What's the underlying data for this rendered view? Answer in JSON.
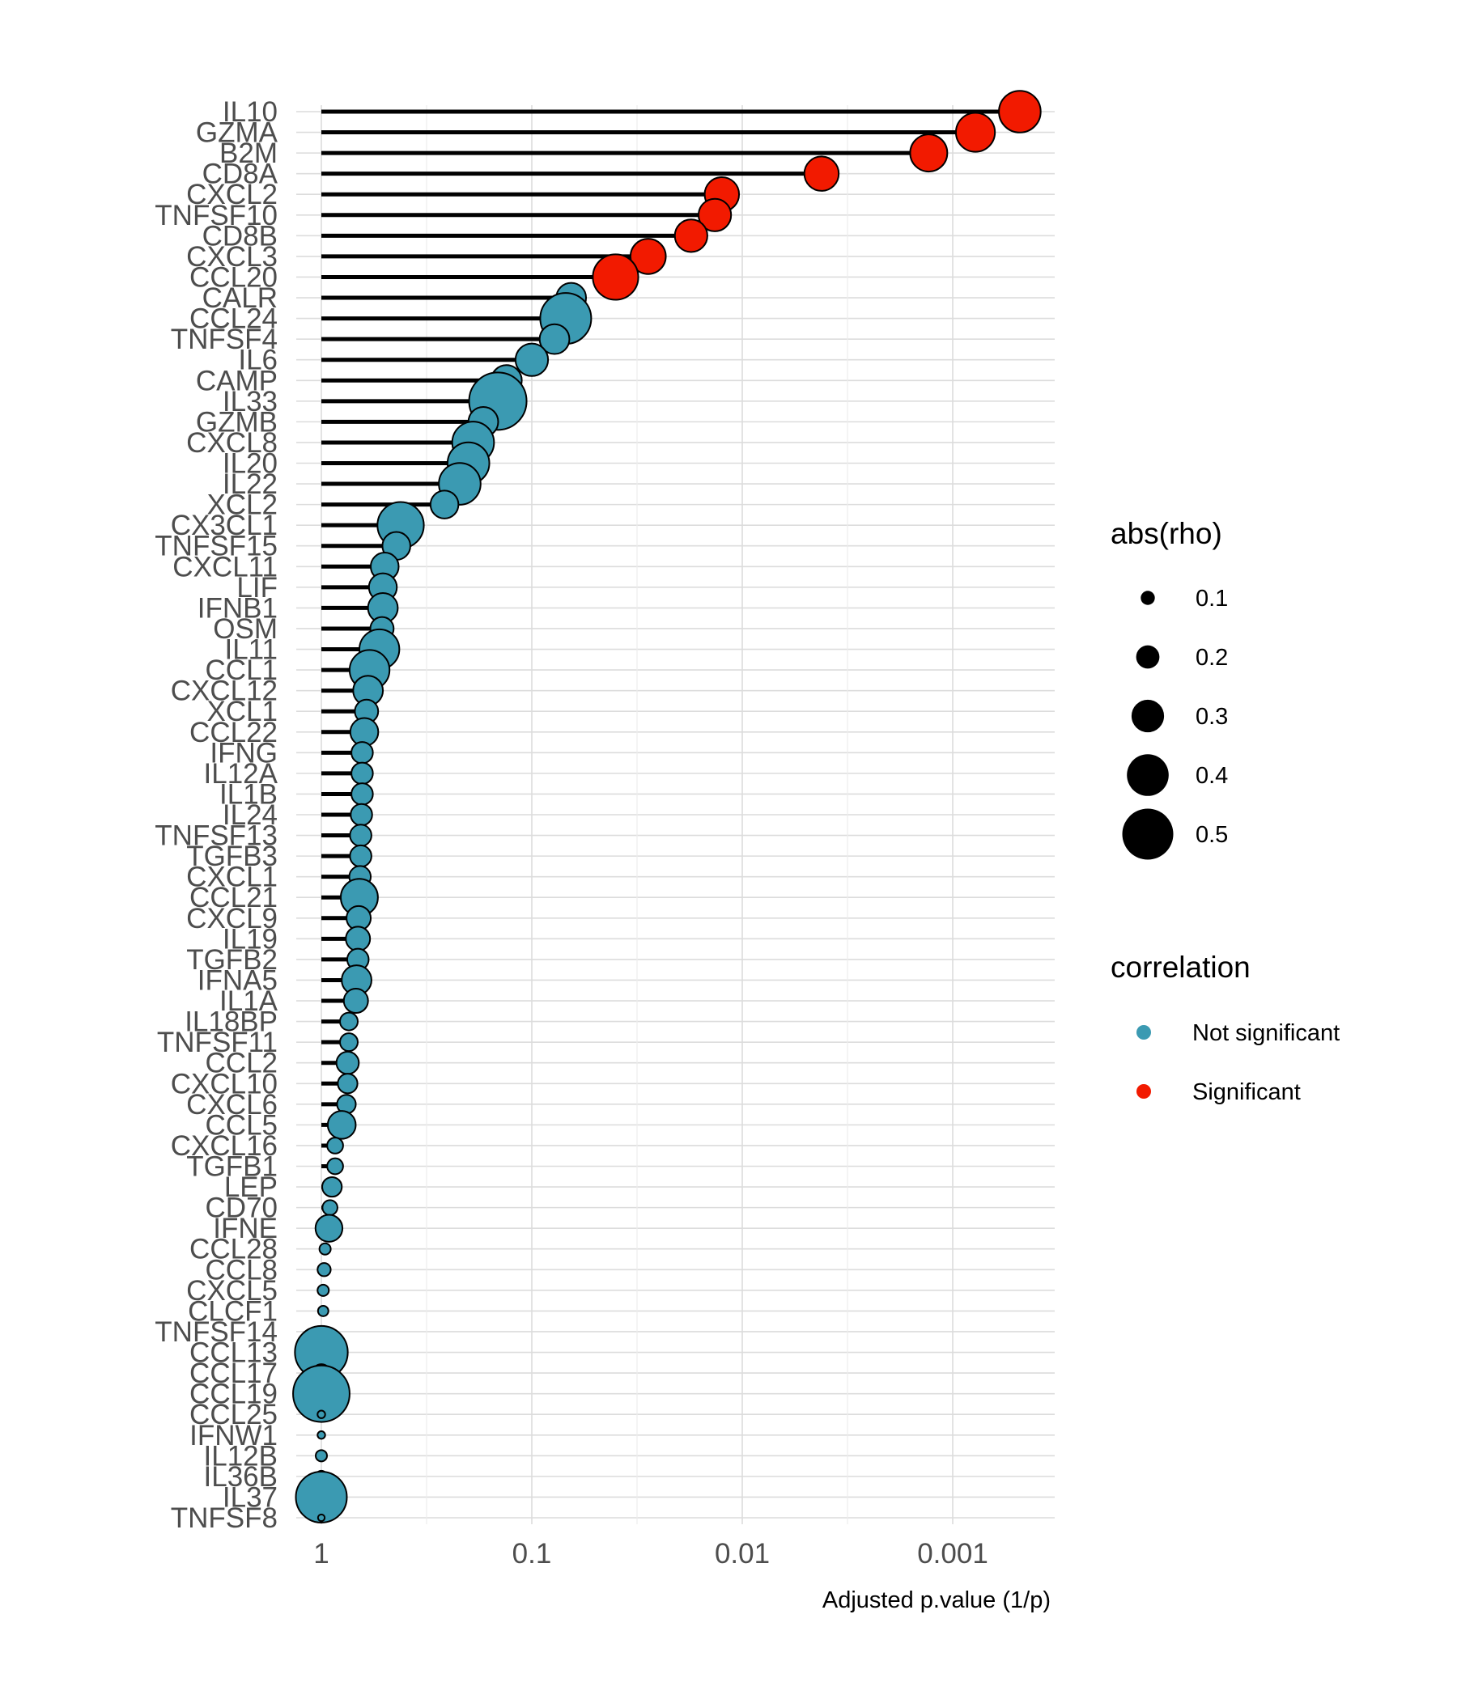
{
  "chart_data": {
    "type": "lollipop",
    "xlabel": "Adjusted p.value (1/p)",
    "x_scale": "log-reversed",
    "x_ticks": [
      "1",
      "0.1",
      "0.01",
      "0.001"
    ],
    "x_tick_values": [
      1,
      0.1,
      0.01,
      0.001
    ],
    "xlim": [
      1.15,
      0.00035
    ],
    "grid": true,
    "legend_position": "right",
    "size_legend": {
      "title": "abs(rho)",
      "items": [
        {
          "label": "0.1",
          "value": 0.1
        },
        {
          "label": "0.2",
          "value": 0.2
        },
        {
          "label": "0.3",
          "value": 0.3
        },
        {
          "label": "0.4",
          "value": 0.4
        },
        {
          "label": "0.5",
          "value": 0.5
        }
      ]
    },
    "color_legend": {
      "title": "correlation",
      "items": [
        {
          "label": "Not significant",
          "color": "#3B9AB2"
        },
        {
          "label": "Significant",
          "color": "#F21A00"
        }
      ]
    },
    "colors": {
      "Not significant": "#3B9AB2",
      "Significant": "#F21A00"
    },
    "points": [
      {
        "gene": "IL10",
        "p": 0.00048,
        "rho": 0.4,
        "group": "Significant"
      },
      {
        "gene": "GZMA",
        "p": 0.00078,
        "rho": 0.37,
        "group": "Significant"
      },
      {
        "gene": "B2M",
        "p": 0.0013,
        "rho": 0.35,
        "group": "Significant"
      },
      {
        "gene": "CD8A",
        "p": 0.0042,
        "rho": 0.32,
        "group": "Significant"
      },
      {
        "gene": "CXCL2",
        "p": 0.0125,
        "rho": 0.32,
        "group": "Significant"
      },
      {
        "gene": "TNFSF10",
        "p": 0.0135,
        "rho": 0.3,
        "group": "Significant"
      },
      {
        "gene": "CD8B",
        "p": 0.0175,
        "rho": 0.3,
        "group": "Significant"
      },
      {
        "gene": "CXCL3",
        "p": 0.028,
        "rho": 0.33,
        "group": "Significant"
      },
      {
        "gene": "CCL20",
        "p": 0.04,
        "rho": 0.44,
        "group": "Significant"
      },
      {
        "gene": "CALR",
        "p": 0.065,
        "rho": 0.27,
        "group": "Not significant"
      },
      {
        "gene": "CCL24",
        "p": 0.069,
        "rho": 0.5,
        "group": "Not significant"
      },
      {
        "gene": "TNFSF4",
        "p": 0.078,
        "rho": 0.27,
        "group": "Not significant"
      },
      {
        "gene": "IL6",
        "p": 0.1,
        "rho": 0.3,
        "group": "Not significant"
      },
      {
        "gene": "CAMP",
        "p": 0.132,
        "rho": 0.28,
        "group": "Not significant"
      },
      {
        "gene": "IL33",
        "p": 0.145,
        "rho": 0.57,
        "group": "Not significant"
      },
      {
        "gene": "GZMB",
        "p": 0.17,
        "rho": 0.27,
        "group": "Not significant"
      },
      {
        "gene": "CXCL8",
        "p": 0.19,
        "rho": 0.4,
        "group": "Not significant"
      },
      {
        "gene": "IL20",
        "p": 0.2,
        "rho": 0.4,
        "group": "Not significant"
      },
      {
        "gene": "IL22",
        "p": 0.22,
        "rho": 0.4,
        "group": "Not significant"
      },
      {
        "gene": "XCL2",
        "p": 0.26,
        "rho": 0.25,
        "group": "Not significant"
      },
      {
        "gene": "CX3CL1",
        "p": 0.42,
        "rho": 0.45,
        "group": "Not significant"
      },
      {
        "gene": "TNFSF15",
        "p": 0.44,
        "rho": 0.25,
        "group": "Not significant"
      },
      {
        "gene": "CXCL11",
        "p": 0.5,
        "rho": 0.25,
        "group": "Not significant"
      },
      {
        "gene": "LIF",
        "p": 0.51,
        "rho": 0.25,
        "group": "Not significant"
      },
      {
        "gene": "IFNB1",
        "p": 0.51,
        "rho": 0.27,
        "group": "Not significant"
      },
      {
        "gene": "OSM",
        "p": 0.515,
        "rho": 0.2,
        "group": "Not significant"
      },
      {
        "gene": "IL11",
        "p": 0.53,
        "rho": 0.38,
        "group": "Not significant"
      },
      {
        "gene": "CCL1",
        "p": 0.59,
        "rho": 0.38,
        "group": "Not significant"
      },
      {
        "gene": "CXCL12",
        "p": 0.6,
        "rho": 0.27,
        "group": "Not significant"
      },
      {
        "gene": "XCL1",
        "p": 0.61,
        "rho": 0.2,
        "group": "Not significant"
      },
      {
        "gene": "CCL22",
        "p": 0.625,
        "rho": 0.25,
        "group": "Not significant"
      },
      {
        "gene": "IFNG",
        "p": 0.64,
        "rho": 0.18,
        "group": "Not significant"
      },
      {
        "gene": "IL12A",
        "p": 0.64,
        "rho": 0.18,
        "group": "Not significant"
      },
      {
        "gene": "IL1B",
        "p": 0.64,
        "rho": 0.18,
        "group": "Not significant"
      },
      {
        "gene": "IL24",
        "p": 0.645,
        "rho": 0.18,
        "group": "Not significant"
      },
      {
        "gene": "TNFSF13",
        "p": 0.65,
        "rho": 0.18,
        "group": "Not significant"
      },
      {
        "gene": "TGFB3",
        "p": 0.65,
        "rho": 0.18,
        "group": "Not significant"
      },
      {
        "gene": "CXCL1",
        "p": 0.655,
        "rho": 0.18,
        "group": "Not significant"
      },
      {
        "gene": "CCL21",
        "p": 0.66,
        "rho": 0.35,
        "group": "Not significant"
      },
      {
        "gene": "CXCL9",
        "p": 0.665,
        "rho": 0.21,
        "group": "Not significant"
      },
      {
        "gene": "IL19",
        "p": 0.67,
        "rho": 0.21,
        "group": "Not significant"
      },
      {
        "gene": "TGFB2",
        "p": 0.67,
        "rho": 0.18,
        "group": "Not significant"
      },
      {
        "gene": "IFNA5",
        "p": 0.68,
        "rho": 0.27,
        "group": "Not significant"
      },
      {
        "gene": "IL1A",
        "p": 0.685,
        "rho": 0.21,
        "group": "Not significant"
      },
      {
        "gene": "IL18BP",
        "p": 0.74,
        "rho": 0.14,
        "group": "Not significant"
      },
      {
        "gene": "TNFSF11",
        "p": 0.74,
        "rho": 0.14,
        "group": "Not significant"
      },
      {
        "gene": "CCL2",
        "p": 0.75,
        "rho": 0.19,
        "group": "Not significant"
      },
      {
        "gene": "CXCL10",
        "p": 0.75,
        "rho": 0.16,
        "group": "Not significant"
      },
      {
        "gene": "CXCL6",
        "p": 0.76,
        "rho": 0.15,
        "group": "Not significant"
      },
      {
        "gene": "CCL5",
        "p": 0.8,
        "rho": 0.25,
        "group": "Not significant"
      },
      {
        "gene": "CXCL16",
        "p": 0.86,
        "rho": 0.12,
        "group": "Not significant"
      },
      {
        "gene": "TGFB1",
        "p": 0.86,
        "rho": 0.12,
        "group": "Not significant"
      },
      {
        "gene": "LEP",
        "p": 0.89,
        "rho": 0.16,
        "group": "Not significant"
      },
      {
        "gene": "CD70",
        "p": 0.91,
        "rho": 0.11,
        "group": "Not significant"
      },
      {
        "gene": "IFNE",
        "p": 0.92,
        "rho": 0.24,
        "group": "Not significant"
      },
      {
        "gene": "CCL28",
        "p": 0.96,
        "rho": 0.07,
        "group": "Not significant"
      },
      {
        "gene": "CCL8",
        "p": 0.97,
        "rho": 0.09,
        "group": "Not significant"
      },
      {
        "gene": "CXCL5",
        "p": 0.98,
        "rho": 0.07,
        "group": "Not significant"
      },
      {
        "gene": "CLCF1",
        "p": 0.98,
        "rho": 0.06,
        "group": "Not significant"
      },
      {
        "gene": "TNFSF14",
        "p": 0.99,
        "rho": 0.04,
        "group": "Not significant"
      },
      {
        "gene": "CCL13",
        "p": 1,
        "rho": 0.52,
        "group": "Not significant"
      },
      {
        "gene": "CCL17",
        "p": 1,
        "rho": 0.14,
        "group": "Not significant"
      },
      {
        "gene": "CCL19",
        "p": 1,
        "rho": 0.56,
        "group": "Not significant"
      },
      {
        "gene": "CCL25",
        "p": 1,
        "rho": 0.03,
        "group": "Not significant"
      },
      {
        "gene": "IFNW1",
        "p": 1,
        "rho": 0.03,
        "group": "Not significant"
      },
      {
        "gene": "IL12B",
        "p": 1,
        "rho": 0.07,
        "group": "Not significant"
      },
      {
        "gene": "IL36B",
        "p": 1,
        "rho": 0.07,
        "group": "Not significant"
      },
      {
        "gene": "IL37",
        "p": 1,
        "rho": 0.5,
        "group": "Not significant"
      },
      {
        "gene": "TNFSF8",
        "p": 1,
        "rho": 0.02,
        "group": "Not significant"
      }
    ]
  }
}
